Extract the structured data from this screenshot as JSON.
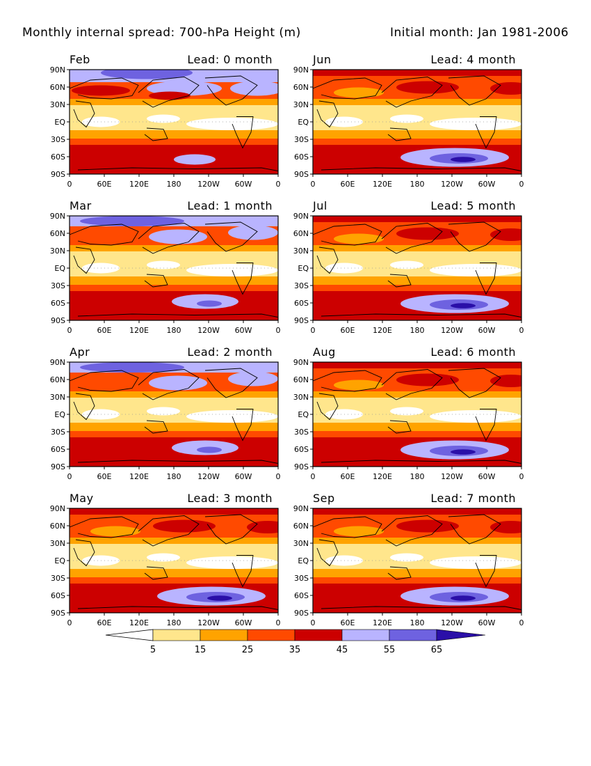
{
  "title_left": "Monthly internal spread: 700-hPa Height (m)",
  "title_right": "Initial month: Jan 1981-2006",
  "panels": [
    {
      "month": "Feb",
      "lead": "Lead: 0 month"
    },
    {
      "month": "Jun",
      "lead": "Lead: 4 month"
    },
    {
      "month": "Mar",
      "lead": "Lead: 1 month"
    },
    {
      "month": "Jul",
      "lead": "Lead: 5 month"
    },
    {
      "month": "Apr",
      "lead": "Lead: 2 month"
    },
    {
      "month": "Aug",
      "lead": "Lead: 6 month"
    },
    {
      "month": "May",
      "lead": "Lead: 3 month"
    },
    {
      "month": "Sep",
      "lead": "Lead: 7 month"
    }
  ],
  "y_ticks": [
    "90N",
    "60N",
    "30N",
    "EQ",
    "30S",
    "60S",
    "90S"
  ],
  "x_ticks": [
    "0",
    "60E",
    "120E",
    "180",
    "120W",
    "60W",
    "0"
  ],
  "colorbar": {
    "labels": [
      "5",
      "15",
      "25",
      "35",
      "45",
      "55",
      "65"
    ],
    "colors": [
      "#ffffff",
      "#ffe68c",
      "#ffa300",
      "#ff4a00",
      "#cc0000",
      "#b9b4ff",
      "#6e62e0",
      "#2a0fa8"
    ]
  },
  "map_colors": {
    "c0": "#ffffff",
    "c1": "#ffe68c",
    "c2": "#ffa300",
    "c3": "#ff4a00",
    "c4": "#cc0000",
    "c5": "#b9b4ff",
    "c6": "#6e62e0",
    "c7": "#2a0fa8"
  }
}
